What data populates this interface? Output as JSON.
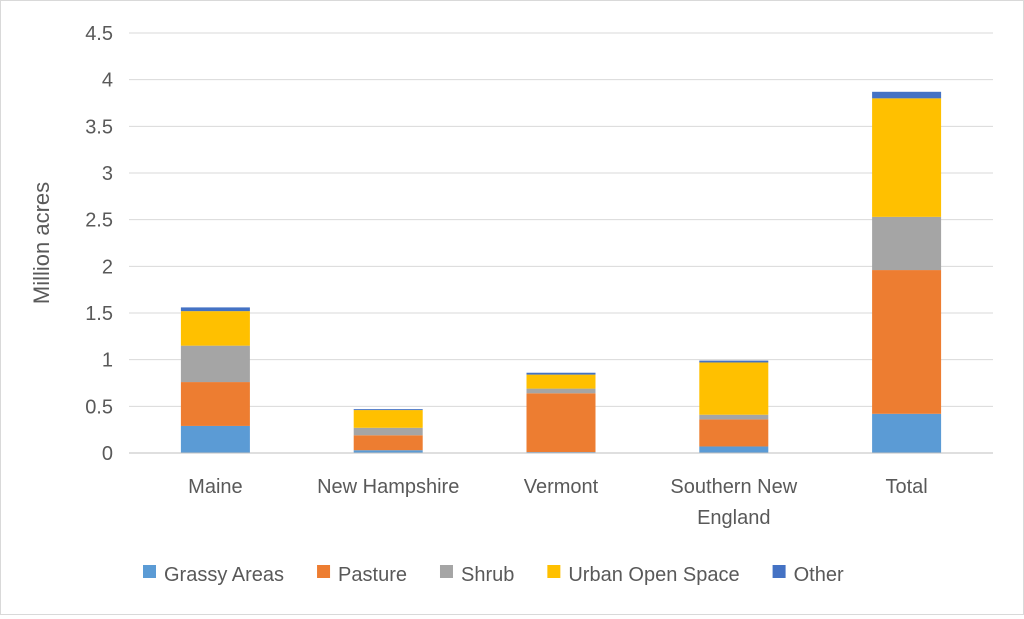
{
  "chart_data": {
    "type": "bar",
    "stacked": true,
    "categories": [
      [
        "Maine"
      ],
      [
        "New Hampshire"
      ],
      [
        "Vermont"
      ],
      [
        "Southern New",
        "England"
      ],
      [
        "Total"
      ]
    ],
    "series": [
      {
        "name": "Grassy Areas",
        "color": "#5B9BD5",
        "values": [
          0.29,
          0.03,
          0.01,
          0.07,
          0.42
        ]
      },
      {
        "name": "Pasture",
        "color": "#ED7D31",
        "values": [
          0.47,
          0.16,
          0.63,
          0.29,
          1.54
        ]
      },
      {
        "name": "Shrub",
        "color": "#A5A5A5",
        "values": [
          0.39,
          0.08,
          0.05,
          0.05,
          0.57
        ]
      },
      {
        "name": "Urban Open Space",
        "color": "#FFC000",
        "values": [
          0.37,
          0.19,
          0.15,
          0.56,
          1.27
        ]
      },
      {
        "name": "Other",
        "color": "#4472C4",
        "values": [
          0.04,
          0.01,
          0.02,
          0.02,
          0.07
        ]
      }
    ],
    "ylabel": "Million acres",
    "xlabel": "",
    "title": "",
    "ylim": [
      0,
      4.5
    ],
    "yticks": [
      "0",
      "0.5",
      "1",
      "1.5",
      "2",
      "2.5",
      "3",
      "3.5",
      "4",
      "4.5"
    ],
    "grid": true,
    "gridColor": "#d9d9d9",
    "legend_position": "bottom"
  }
}
